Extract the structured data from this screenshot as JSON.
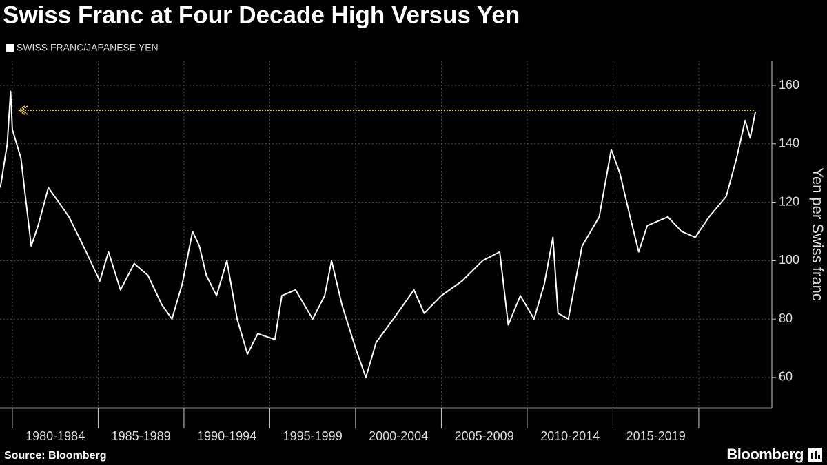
{
  "chart_data": {
    "type": "line",
    "title": "Swiss Franc at Four Decade High Versus Yen",
    "y_axis_label": "Yen per Swiss franc",
    "source": "Source: Bloomberg",
    "brand": "Bloomberg",
    "series": [
      {
        "name": "SWISS FRANC/JAPANESE YEN",
        "color": "#ffffff",
        "x": [
          1979.3,
          1979.7,
          1979.9,
          1980.0,
          1980.5,
          1981.1,
          1981.5,
          1982.1,
          1982.7,
          1983.3,
          1984.3,
          1985.1,
          1985.6,
          1986.3,
          1987.1,
          1987.9,
          1988.7,
          1989.3,
          1989.9,
          1990.5,
          1990.9,
          1991.3,
          1991.9,
          1992.5,
          1993.1,
          1993.7,
          1994.3,
          1995.3,
          1995.7,
          1996.5,
          1997.5,
          1998.2,
          1998.6,
          1999.2,
          2000.0,
          2000.6,
          2001.2,
          2002.2,
          2003.4,
          2004.0,
          2005.0,
          2006.2,
          2007.4,
          2008.4,
          2008.9,
          2009.6,
          2010.4,
          2011.0,
          2011.5,
          2011.8,
          2012.4,
          2013.2,
          2014.2,
          2014.9,
          2015.4,
          2016.0,
          2016.5,
          2017.0,
          2018.2,
          2019.0,
          2019.8,
          2020.6,
          2021.6,
          2022.2,
          2022.7,
          2023.0,
          2023.3
        ],
        "values": [
          125,
          140,
          158,
          145,
          135,
          105,
          112,
          125,
          120,
          115,
          103,
          93,
          103,
          90,
          99,
          95,
          85,
          80,
          92,
          110,
          105,
          95,
          88,
          100,
          80,
          68,
          75,
          73,
          88,
          90,
          80,
          88,
          100,
          85,
          70,
          60,
          72,
          80,
          90,
          82,
          88,
          93,
          100,
          103,
          78,
          88,
          80,
          92,
          108,
          82,
          80,
          105,
          115,
          138,
          130,
          115,
          103,
          112,
          115,
          110,
          108,
          115,
          122,
          135,
          148,
          142,
          151
        ]
      }
    ],
    "reference_line": {
      "value": 151.5,
      "color": "#e8cf4a",
      "x": [
        1980.4,
        2023.3
      ]
    },
    "xlim": [
      1979.28,
      2024.26
    ],
    "xticks": [
      {
        "value": 1980,
        "label": "1980-1984"
      },
      {
        "value": 1985,
        "label": "1985-1989"
      },
      {
        "value": 1990,
        "label": "1990-1994"
      },
      {
        "value": 1995,
        "label": "1995-1999"
      },
      {
        "value": 2000,
        "label": "2000-2004"
      },
      {
        "value": 2005,
        "label": "2005-2009"
      },
      {
        "value": 2010,
        "label": "2010-2014"
      },
      {
        "value": 2015,
        "label": "2015-2019"
      },
      {
        "value": 2020,
        "label": null
      }
    ],
    "ylim": [
      49.6,
      168.5
    ],
    "yticks": [
      60,
      80,
      100,
      120,
      140,
      160
    ],
    "grid": true
  }
}
